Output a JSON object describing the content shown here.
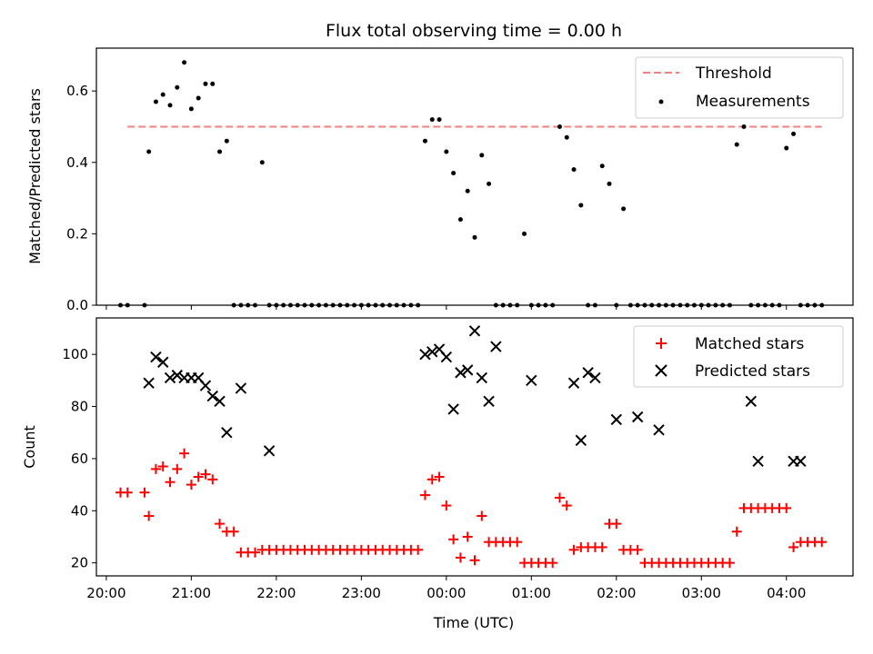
{
  "figure": {
    "title": "Flux total observing time = 0.00 h",
    "xlabel": "Time (UTC)"
  },
  "chart_data": [
    {
      "type": "scatter",
      "title": "Flux total observing time = 0.00 h",
      "ylabel": "Matched/Predicted stars",
      "xlim": [
        "19:53",
        "04:47"
      ],
      "ylim": [
        0,
        0.72
      ],
      "yticks": [
        0.0,
        0.2,
        0.4,
        0.6
      ],
      "ytick_labels": [
        "0.0",
        "0.2",
        "0.4",
        "0.6"
      ],
      "legend": {
        "position": "top-right",
        "entries": [
          "Threshold",
          "Measurements"
        ]
      },
      "threshold": {
        "name": "Threshold",
        "value": 0.5,
        "x_start": "20:15",
        "x_end": "04:25",
        "color": "#f08080"
      },
      "series": [
        {
          "name": "Measurements",
          "color": "#000000",
          "x": [
            "20:10",
            "20:15",
            "20:27",
            "20:30",
            "20:35",
            "20:40",
            "20:45",
            "20:50",
            "20:55",
            "21:00",
            "21:05",
            "21:10",
            "21:15",
            "21:20",
            "21:25",
            "21:30",
            "21:35",
            "21:40",
            "21:45",
            "21:50",
            "21:55",
            "22:00",
            "22:05",
            "22:10",
            "22:15",
            "22:20",
            "22:25",
            "22:30",
            "22:35",
            "22:40",
            "22:45",
            "22:50",
            "22:55",
            "23:00",
            "23:05",
            "23:10",
            "23:15",
            "23:20",
            "23:25",
            "23:30",
            "23:35",
            "23:40",
            "23:45",
            "23:50",
            "23:55",
            "00:00",
            "00:05",
            "00:10",
            "00:15",
            "00:20",
            "00:25",
            "00:30",
            "00:35",
            "00:40",
            "00:45",
            "00:50",
            "00:55",
            "01:00",
            "01:05",
            "01:10",
            "01:15",
            "01:20",
            "01:25",
            "01:30",
            "01:35",
            "01:40",
            "01:45",
            "01:50",
            "01:55",
            "02:00",
            "02:05",
            "02:10",
            "02:15",
            "02:20",
            "02:25",
            "02:30",
            "02:35",
            "02:40",
            "02:45",
            "02:50",
            "02:55",
            "03:00",
            "03:05",
            "03:10",
            "03:15",
            "03:20",
            "03:25",
            "03:30",
            "03:35",
            "03:40",
            "03:45",
            "03:50",
            "03:55",
            "04:00",
            "04:05",
            "04:10",
            "04:15",
            "04:20",
            "04:25"
          ],
          "y": [
            0,
            0,
            0,
            0.43,
            0.57,
            0.59,
            0.56,
            0.61,
            0.68,
            0.55,
            0.58,
            0.62,
            0.62,
            0.43,
            0.46,
            0,
            0,
            0,
            0,
            0.4,
            0,
            0,
            0,
            0,
            0,
            0,
            0,
            0,
            0,
            0,
            0,
            0,
            0,
            0,
            0,
            0,
            0,
            0,
            0,
            0,
            0,
            0,
            0.46,
            0.52,
            0.52,
            0.43,
            0.37,
            0.24,
            0.32,
            0.19,
            0.42,
            0.34,
            0,
            0,
            0,
            0,
            0.2,
            0,
            0,
            0,
            0,
            0.5,
            0.47,
            0.38,
            0.28,
            0,
            0,
            0.39,
            0.34,
            0,
            0.27,
            0,
            0,
            0,
            0,
            0,
            0,
            0,
            0,
            0,
            0,
            0,
            0,
            0,
            0,
            0,
            0.45,
            0.5,
            0,
            0,
            0,
            0,
            0,
            0.44,
            0.48,
            0,
            0,
            0,
            0
          ]
        }
      ]
    },
    {
      "type": "scatter",
      "ylabel": "Count",
      "xlabel": "Time (UTC)",
      "xlim": [
        "19:53",
        "04:47"
      ],
      "ylim": [
        15,
        114
      ],
      "yticks": [
        20,
        40,
        60,
        80,
        100
      ],
      "ytick_labels": [
        "20",
        "40",
        "60",
        "80",
        "100"
      ],
      "xticks": [
        "20:00",
        "21:00",
        "22:00",
        "23:00",
        "00:00",
        "01:00",
        "02:00",
        "03:00",
        "04:00"
      ],
      "legend": {
        "position": "top-right",
        "entries": [
          "Matched stars",
          "Predicted stars"
        ]
      },
      "series": [
        {
          "name": "Matched stars",
          "marker": "+",
          "color": "#ff0000",
          "x": [
            "20:10",
            "20:15",
            "20:27",
            "20:30",
            "20:35",
            "20:40",
            "20:45",
            "20:50",
            "20:55",
            "21:00",
            "21:05",
            "21:10",
            "21:15",
            "21:20",
            "21:25",
            "21:30",
            "21:35",
            "21:40",
            "21:45",
            "21:50",
            "21:55",
            "22:00",
            "22:05",
            "22:10",
            "22:15",
            "22:20",
            "22:25",
            "22:30",
            "22:35",
            "22:40",
            "22:45",
            "22:50",
            "22:55",
            "23:00",
            "23:05",
            "23:10",
            "23:15",
            "23:20",
            "23:25",
            "23:30",
            "23:35",
            "23:40",
            "23:45",
            "23:50",
            "23:55",
            "00:00",
            "00:05",
            "00:10",
            "00:15",
            "00:20",
            "00:25",
            "00:30",
            "00:35",
            "00:40",
            "00:45",
            "00:50",
            "00:55",
            "01:00",
            "01:05",
            "01:10",
            "01:15",
            "01:20",
            "01:25",
            "01:30",
            "01:35",
            "01:40",
            "01:45",
            "01:50",
            "01:55",
            "02:00",
            "02:05",
            "02:10",
            "02:15",
            "02:20",
            "02:25",
            "02:30",
            "02:35",
            "02:40",
            "02:45",
            "02:50",
            "02:55",
            "03:00",
            "03:05",
            "03:10",
            "03:15",
            "03:20",
            "03:25",
            "03:30",
            "03:35",
            "03:40",
            "03:45",
            "03:50",
            "03:55",
            "04:00",
            "04:05",
            "04:10",
            "04:15",
            "04:20",
            "04:25"
          ],
          "y": [
            47,
            47,
            47,
            38,
            56,
            57,
            51,
            56,
            62,
            50,
            53,
            54,
            52,
            35,
            32,
            32,
            24,
            24,
            24,
            25,
            25,
            25,
            25,
            25,
            25,
            25,
            25,
            25,
            25,
            25,
            25,
            25,
            25,
            25,
            25,
            25,
            25,
            25,
            25,
            25,
            25,
            25,
            46,
            52,
            53,
            42,
            29,
            22,
            30,
            21,
            38,
            28,
            28,
            28,
            28,
            28,
            20,
            20,
            20,
            20,
            20,
            45,
            42,
            25,
            26,
            26,
            26,
            26,
            35,
            35,
            25,
            25,
            25,
            20,
            20,
            20,
            20,
            20,
            20,
            20,
            20,
            20,
            20,
            20,
            20,
            20,
            32,
            41,
            41,
            41,
            41,
            41,
            41,
            41,
            26,
            28,
            28,
            28,
            28
          ]
        },
        {
          "name": "Predicted stars",
          "marker": "x",
          "color": "#000000",
          "x": [
            "20:30",
            "20:35",
            "20:40",
            "20:45",
            "20:50",
            "20:55",
            "21:00",
            "21:05",
            "21:10",
            "21:15",
            "21:20",
            "21:25",
            "21:35",
            "21:55",
            "23:45",
            "23:50",
            "23:55",
            "00:00",
            "00:05",
            "00:10",
            "00:15",
            "00:20",
            "00:25",
            "00:30",
            "00:35",
            "01:00",
            "01:30",
            "01:35",
            "01:40",
            "01:45",
            "02:00",
            "02:15",
            "02:30",
            "03:35",
            "03:40",
            "04:05",
            "04:10"
          ],
          "y": [
            89,
            99,
            97,
            91,
            92,
            91,
            91,
            91,
            88,
            84,
            82,
            70,
            87,
            63,
            100,
            101,
            102,
            99,
            79,
            93,
            94,
            109,
            91,
            82,
            103,
            90,
            89,
            67,
            93,
            91,
            75,
            76,
            71,
            82,
            59,
            59,
            59
          ]
        }
      ]
    }
  ]
}
